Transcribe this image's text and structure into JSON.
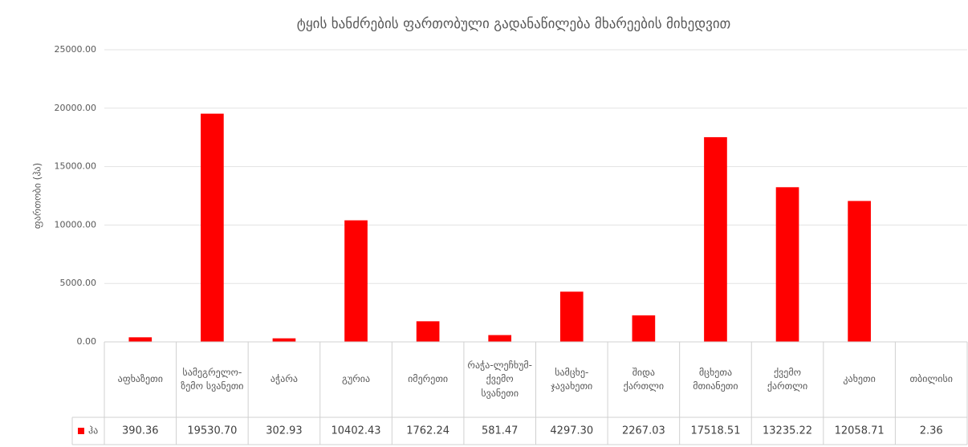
{
  "chart_data": {
    "type": "bar",
    "title": "ტყის ხანძრების ფართობული გადანაწილება მხარეების მიხედვით",
    "y_label": "ფართობი (ჰა)",
    "categories": [
      "აფხაზეთი",
      "სამეგრელო-ზემო სვანეთი",
      "აჭარა",
      "გურია",
      "იმერეთი",
      "რაჭა-ლეჩხუმ-ქვემო სვანეთი",
      "სამცხე-ჯავახეთი",
      "შიდა ქართლი",
      "მცხეთა მთიანეთი",
      "ქვემო ქართლი",
      "კახეთი",
      "თბილისი"
    ],
    "series": [
      {
        "name": "ჰა",
        "color": "#ff0000",
        "values": [
          390.36,
          19530.7,
          302.93,
          10402.43,
          1762.24,
          581.47,
          4297.3,
          2267.03,
          17518.51,
          13235.22,
          12058.71,
          2.36
        ],
        "value_labels": [
          "390.36",
          "19530.70",
          "302.93",
          "10402.43",
          "1762.24",
          "581.47",
          "4297.30",
          "2267.03",
          "17518.51",
          "13235.22",
          "12058.71",
          "2.36"
        ]
      }
    ],
    "ylim": [
      0,
      25000
    ],
    "yticks": [
      {
        "value": 0,
        "label": "0.00"
      },
      {
        "value": 5000,
        "label": "5000.00"
      },
      {
        "value": 10000,
        "label": "10000.00"
      },
      {
        "value": 15000,
        "label": "15000.00"
      },
      {
        "value": 20000,
        "label": "20000.00"
      },
      {
        "value": 25000,
        "label": "25000.00"
      }
    ],
    "grid": true,
    "data_table": true
  }
}
